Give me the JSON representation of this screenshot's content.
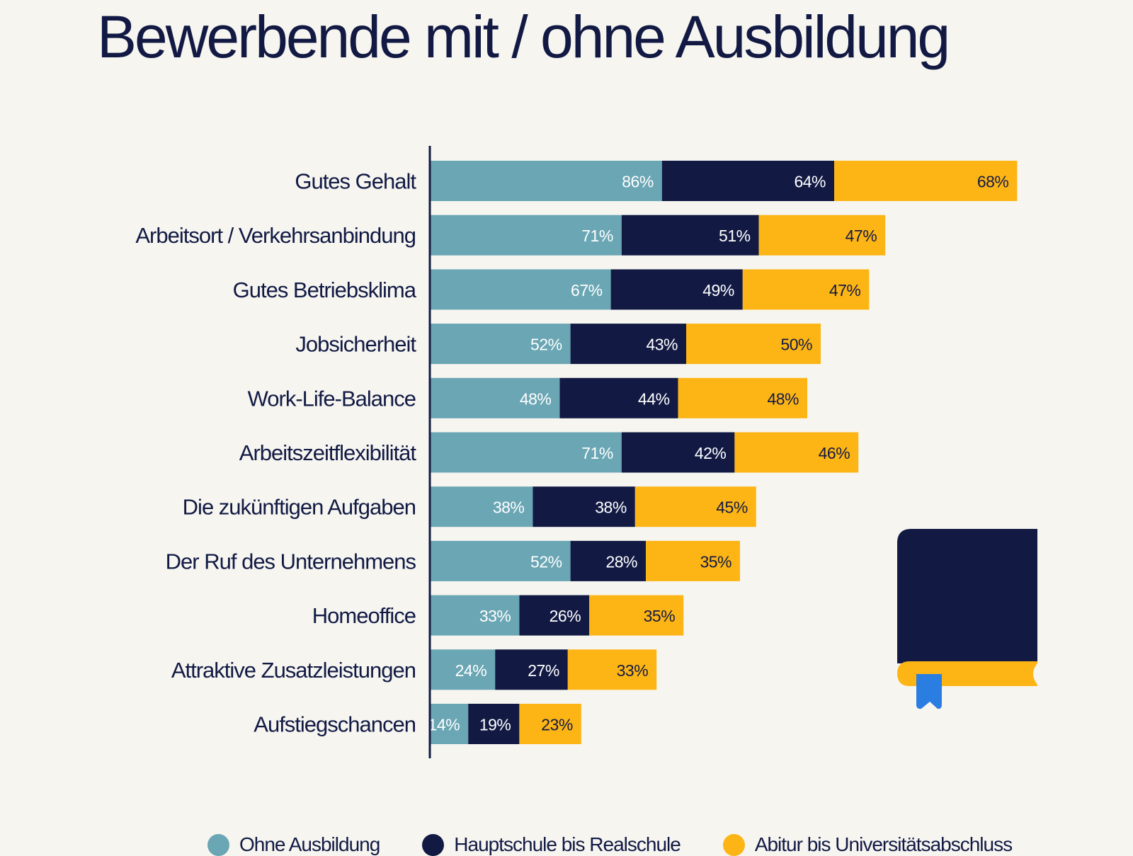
{
  "colors": {
    "background": "#f6f5f0",
    "text": "#121a44",
    "series": [
      "#6aa6b4",
      "#121a44",
      "#fdb515"
    ],
    "value_label": [
      "#ffffff",
      "#ffffff",
      "#121a44"
    ],
    "bookmark": "#2a7de1"
  },
  "decoration": {
    "icon": "book-icon"
  },
  "chart_data": {
    "type": "bar",
    "orientation": "horizontal",
    "stacked": true,
    "title": "Bewerbende mit / ohne Ausbildung",
    "xlabel": "",
    "ylabel": "",
    "unit": "%",
    "grid": false,
    "legend_position": "bottom",
    "categories": [
      "Gutes Gehalt",
      "Arbeitsort / Verkehrsanbindung",
      "Gutes Betriebsklima",
      "Jobsicherheit",
      "Work-Life-Balance",
      "Arbeitszeitflexibilität",
      "Die zukünftigen Aufgaben",
      "Der Ruf des Unternehmens",
      "Homeoffice",
      "Attraktive Zusatzleistungen",
      "Aufstiegschancen"
    ],
    "series": [
      {
        "name": "Ohne Ausbildung",
        "values": [
          86,
          71,
          67,
          52,
          48,
          71,
          38,
          52,
          33,
          24,
          14
        ],
        "labels": [
          "86%",
          "71%",
          "67%",
          "52%",
          "48%",
          "71%",
          "38%",
          "52%",
          "33%",
          "24%",
          "14%"
        ]
      },
      {
        "name": "Hauptschule bis Realschule",
        "values": [
          64,
          51,
          49,
          43,
          44,
          42,
          38,
          28,
          26,
          27,
          19
        ],
        "labels": [
          "64%",
          "51%",
          "49%",
          "43%",
          "44%",
          "42%",
          "38%",
          "28%",
          "26%",
          "27%",
          "19%"
        ]
      },
      {
        "name": "Abitur bis Universitätsabschluss",
        "values": [
          68,
          47,
          47,
          50,
          48,
          46,
          45,
          35,
          35,
          33,
          23
        ],
        "labels": [
          "68%",
          "47%",
          "47%",
          "50%",
          "48%",
          "46%",
          "45%",
          "35%",
          "35%",
          "33%",
          "23%"
        ]
      }
    ],
    "xlim": [
      0,
      218
    ]
  }
}
